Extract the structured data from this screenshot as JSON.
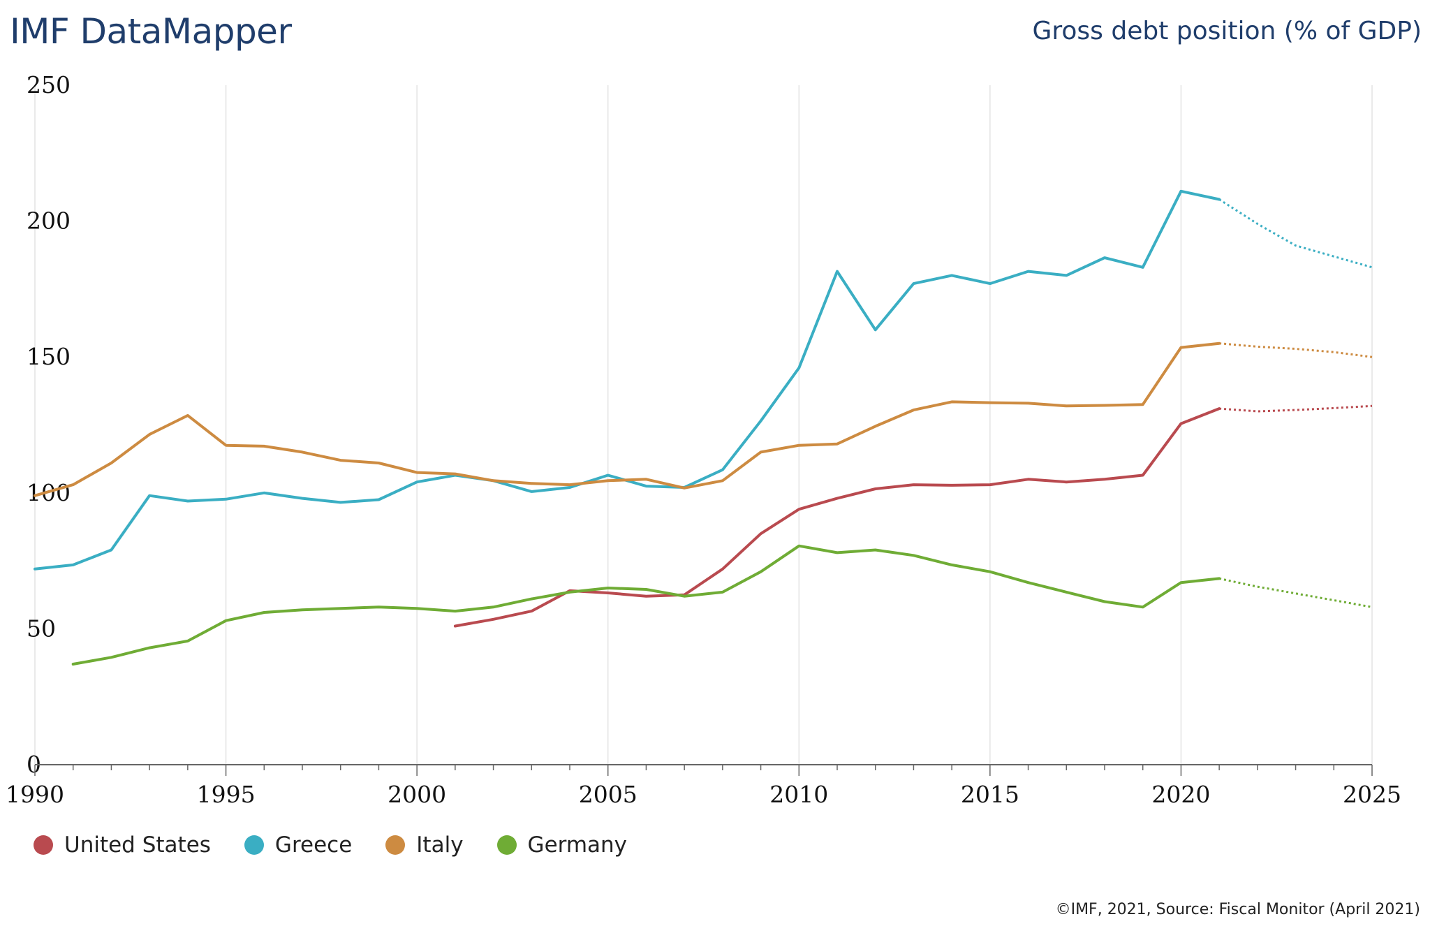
{
  "header": {
    "brand": "IMF DataMapper",
    "indicator": "Gross debt position (% of GDP)"
  },
  "footer": {
    "credit": "©IMF, 2021, Source: Fiscal Monitor (April 2021)"
  },
  "colors": {
    "united_states": "#b94a4f",
    "greece": "#3aaec3",
    "italy": "#cd8b41",
    "germany": "#6fac35",
    "grid": "#e3e3e3",
    "text": "#1f3d6b"
  },
  "chart_data": {
    "type": "line",
    "title": "Gross debt position (% of GDP)",
    "xlim": [
      1990,
      2025
    ],
    "ylim": [
      0,
      250
    ],
    "x_ticks": [
      1990,
      1995,
      2000,
      2005,
      2010,
      2015,
      2020,
      2025
    ],
    "y_ticks": [
      0,
      50,
      100,
      150,
      200,
      250
    ],
    "grid": "vertical",
    "legend_position": "bottom-left",
    "forecast_from": 2021,
    "series": [
      {
        "name": "United States",
        "color": "#b94a4f",
        "points": [
          [
            2001,
            51
          ],
          [
            2002,
            53.5
          ],
          [
            2003,
            56.5
          ],
          [
            2004,
            64
          ],
          [
            2005,
            63.2
          ],
          [
            2006,
            62
          ],
          [
            2007,
            62.5
          ],
          [
            2008,
            72
          ],
          [
            2009,
            85
          ],
          [
            2010,
            94
          ],
          [
            2011,
            98
          ],
          [
            2012,
            101.5
          ],
          [
            2013,
            103
          ],
          [
            2014,
            102.8
          ],
          [
            2015,
            103
          ],
          [
            2016,
            105
          ],
          [
            2017,
            104
          ],
          [
            2018,
            105
          ],
          [
            2019,
            106.5
          ],
          [
            2020,
            125.5
          ],
          [
            2021,
            131
          ],
          [
            2022,
            130
          ],
          [
            2023,
            130.5
          ],
          [
            2024,
            131.2
          ],
          [
            2025,
            132
          ]
        ]
      },
      {
        "name": "Greece",
        "color": "#3aaec3",
        "points": [
          [
            1990,
            72
          ],
          [
            1991,
            73.5
          ],
          [
            1992,
            79
          ],
          [
            1993,
            99
          ],
          [
            1994,
            97
          ],
          [
            1995,
            97.7
          ],
          [
            1996,
            100
          ],
          [
            1997,
            98
          ],
          [
            1998,
            96.5
          ],
          [
            1999,
            97.5
          ],
          [
            2000,
            104
          ],
          [
            2001,
            106.5
          ],
          [
            2002,
            104.5
          ],
          [
            2003,
            100.5
          ],
          [
            2004,
            102
          ],
          [
            2005,
            106.5
          ],
          [
            2006,
            102.5
          ],
          [
            2007,
            102
          ],
          [
            2008,
            108.5
          ],
          [
            2009,
            126.5
          ],
          [
            2010,
            146
          ],
          [
            2011,
            181.5
          ],
          [
            2012,
            160
          ],
          [
            2013,
            177
          ],
          [
            2014,
            180
          ],
          [
            2015,
            177
          ],
          [
            2016,
            181.5
          ],
          [
            2017,
            180
          ],
          [
            2018,
            186.5
          ],
          [
            2019,
            183
          ],
          [
            2020,
            211
          ],
          [
            2021,
            208
          ],
          [
            2022,
            199
          ],
          [
            2023,
            191
          ],
          [
            2024,
            187
          ],
          [
            2025,
            183
          ]
        ]
      },
      {
        "name": "Italy",
        "color": "#cd8b41",
        "points": [
          [
            1990,
            99
          ],
          [
            1991,
            103
          ],
          [
            1992,
            111
          ],
          [
            1993,
            121.5
          ],
          [
            1994,
            128.5
          ],
          [
            1995,
            117.5
          ],
          [
            1996,
            117.2
          ],
          [
            1997,
            115
          ],
          [
            1998,
            112
          ],
          [
            1999,
            111
          ],
          [
            2000,
            107.5
          ],
          [
            2001,
            107
          ],
          [
            2002,
            104.5
          ],
          [
            2003,
            103.5
          ],
          [
            2004,
            103
          ],
          [
            2005,
            104.5
          ],
          [
            2006,
            105
          ],
          [
            2007,
            101.8
          ],
          [
            2008,
            104.5
          ],
          [
            2009,
            115
          ],
          [
            2010,
            117.5
          ],
          [
            2011,
            118
          ],
          [
            2012,
            124.5
          ],
          [
            2013,
            130.5
          ],
          [
            2014,
            133.5
          ],
          [
            2015,
            133.2
          ],
          [
            2016,
            133
          ],
          [
            2017,
            132
          ],
          [
            2018,
            132.2
          ],
          [
            2019,
            132.5
          ],
          [
            2020,
            153.5
          ],
          [
            2021,
            155
          ],
          [
            2022,
            153.8
          ],
          [
            2023,
            153
          ],
          [
            2024,
            151.8
          ],
          [
            2025,
            150
          ]
        ]
      },
      {
        "name": "Germany",
        "color": "#6fac35",
        "points": [
          [
            1991,
            37
          ],
          [
            1992,
            39.5
          ],
          [
            1993,
            43
          ],
          [
            1994,
            45.5
          ],
          [
            1995,
            53
          ],
          [
            1996,
            56
          ],
          [
            1997,
            57
          ],
          [
            1998,
            57.5
          ],
          [
            1999,
            58
          ],
          [
            2000,
            57.5
          ],
          [
            2001,
            56.5
          ],
          [
            2002,
            58
          ],
          [
            2003,
            61
          ],
          [
            2004,
            63.5
          ],
          [
            2005,
            65
          ],
          [
            2006,
            64.5
          ],
          [
            2007,
            62
          ],
          [
            2008,
            63.5
          ],
          [
            2009,
            71
          ],
          [
            2010,
            80.5
          ],
          [
            2011,
            78
          ],
          [
            2012,
            79
          ],
          [
            2013,
            77
          ],
          [
            2014,
            73.5
          ],
          [
            2015,
            71
          ],
          [
            2016,
            67
          ],
          [
            2017,
            63.5
          ],
          [
            2018,
            60
          ],
          [
            2019,
            58
          ],
          [
            2020,
            67
          ],
          [
            2021,
            68.5
          ],
          [
            2022,
            65.5
          ],
          [
            2023,
            63
          ],
          [
            2024,
            60.5
          ],
          [
            2025,
            58
          ]
        ]
      }
    ]
  }
}
